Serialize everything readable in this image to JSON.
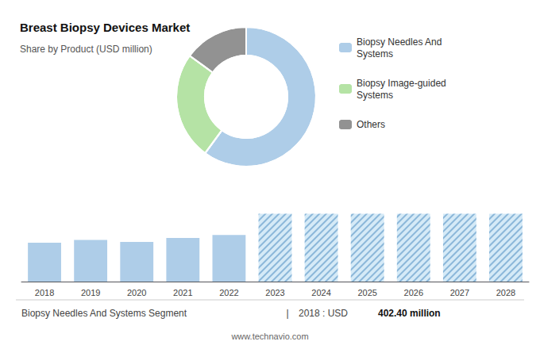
{
  "chart_data": [
    {
      "type": "pie",
      "title": "Breast Biopsy Devices Market",
      "subtitle": "Share by Product (USD million)",
      "categories": [
        "Biopsy Needles And\nSystems",
        "Biopsy Image-guided\nSystems",
        "Others"
      ],
      "values": [
        60,
        25,
        15
      ],
      "colors": [
        "#aecde8",
        "#b5e3a5",
        "#929292"
      ],
      "legend": "right"
    },
    {
      "type": "bar",
      "categories": [
        "2018",
        "2019",
        "2020",
        "2021",
        "2022",
        "2023",
        "2024",
        "2025",
        "2026",
        "2027",
        "2028"
      ],
      "values": [
        40,
        43,
        41,
        45,
        48,
        70,
        70,
        70,
        70,
        70,
        70
      ],
      "colors": [
        "#aecde8",
        "#aecde8",
        "#aecde8",
        "#aecde8",
        "#aecde8",
        "#d5eaf7",
        "#d5eaf7",
        "#d5eaf7",
        "#d5eaf7",
        "#d5eaf7",
        "#d5eaf7"
      ],
      "ylim": [
        0,
        90
      ],
      "grid": false,
      "tick_labels": "x",
      "annotations": [
        "Biopsy Needles And Systems Segment",
        "|",
        "2018 : USD ",
        "402.40 million",
        "www.technavio.com"
      ]
    }
  ]
}
